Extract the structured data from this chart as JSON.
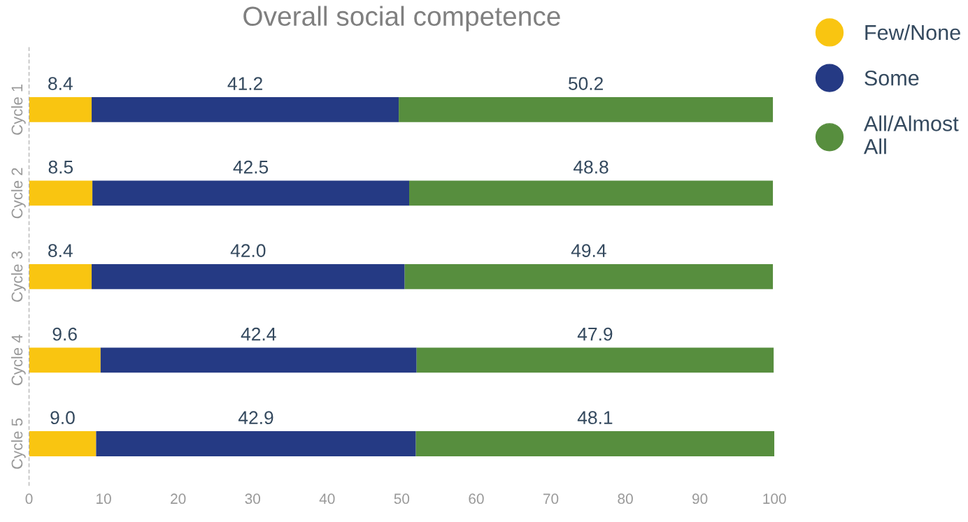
{
  "chart_data": {
    "type": "bar",
    "orientation": "horizontal",
    "stacked": true,
    "title": "Overall social competence",
    "categories": [
      "Cycle 1",
      "Cycle 2",
      "Cycle 3",
      "Cycle 4",
      "Cycle 5"
    ],
    "series": [
      {
        "name": "Few/None",
        "color": "#f9c511",
        "values": [
          8.4,
          8.5,
          8.4,
          9.6,
          9.0
        ],
        "value_labels": [
          "8.4",
          "8.5",
          "8.4",
          "9.6",
          "9.0"
        ]
      },
      {
        "name": "Some",
        "color": "#253a84",
        "values": [
          41.2,
          42.5,
          42.0,
          42.4,
          42.9
        ],
        "value_labels": [
          "41.2",
          "42.5",
          "42.0",
          "42.4",
          "42.9"
        ]
      },
      {
        "name": "All/Almost All",
        "color": "#578e3e",
        "values": [
          50.2,
          48.8,
          49.4,
          47.9,
          48.1
        ],
        "value_labels": [
          "50.2",
          "48.8",
          "49.4",
          "47.9",
          "48.1"
        ]
      }
    ],
    "xlim": [
      0,
      100
    ],
    "xticks": [
      0,
      10,
      20,
      30,
      40,
      50,
      60,
      70,
      80,
      90,
      100
    ],
    "legend": "top right",
    "grid": false
  }
}
